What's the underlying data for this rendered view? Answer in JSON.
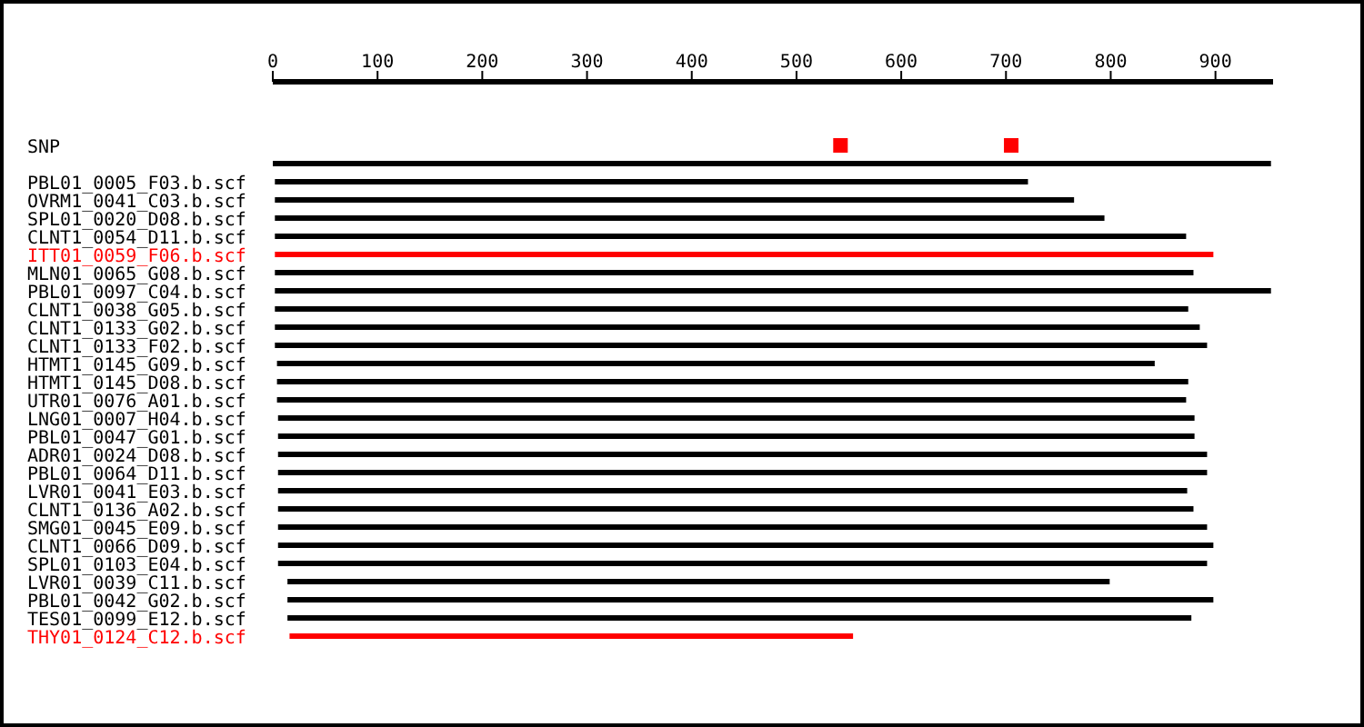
{
  "chart_data": {
    "type": "bar",
    "orientation": "horizontal",
    "categories": [
      "SNP",
      null,
      "PBL01_0005_F03.b.scf",
      "OVRM1_0041_C03.b.scf",
      "SPL01_0020_D08.b.scf",
      "CLNT1_0054_D11.b.scf",
      "ITT01_0059_F06.b.scf",
      "MLN01_0065_G08.b.scf",
      "PBL01_0097_C04.b.scf",
      "CLNT1_0038_G05.b.scf",
      "CLNT1_0133_G02.b.scf",
      "CLNT1_0133_F02.b.scf",
      "HTMT1_0145_G09.b.scf",
      "HTMT1_0145_D08.b.scf",
      "UTR01_0076_A01.b.scf",
      "LNG01_0007_H04.b.scf",
      "PBL01_0047_G01.b.scf",
      "ADR01_0024_D08.b.scf",
      "PBL01_0064_D11.b.scf",
      "LVR01_0041_E03.b.scf",
      "CLNT1_0136_A02.b.scf",
      "SMG01_0045_E09.b.scf",
      "CLNT1_0066_D09.b.scf",
      "SPL01_0103_E04.b.scf",
      "LVR01_0039_C11.b.scf",
      "PBL01_0042_G02.b.scf",
      "TES01_0099_E12.b.scf",
      "THY01_0124_C12.b.scf"
    ],
    "series": [
      {
        "type": "bar",
        "base": [
          null,
          0,
          2,
          2,
          2,
          2,
          2,
          2,
          2,
          2,
          2,
          2,
          4,
          4,
          4,
          5,
          5,
          5,
          5,
          5,
          5,
          5,
          5,
          5,
          14,
          14,
          14,
          16
        ],
        "values": [
          null,
          953,
          719,
          763,
          792,
          870,
          896,
          877,
          951,
          872,
          883,
          890,
          838,
          870,
          868,
          875,
          875,
          887,
          887,
          868,
          874,
          887,
          893,
          887,
          785,
          884,
          863,
          538
        ],
        "colors": [
          "#000000",
          "#000000",
          "#000000",
          "#000000",
          "#000000",
          "#000000",
          "#ff0000",
          "#000000",
          "#000000",
          "#000000",
          "#000000",
          "#000000",
          "#000000",
          "#000000",
          "#000000",
          "#000000",
          "#000000",
          "#000000",
          "#000000",
          "#000000",
          "#000000",
          "#000000",
          "#000000",
          "#000000",
          "#000000",
          "#000000",
          "#000000",
          "#ff0000"
        ]
      },
      {
        "type": "scatter",
        "x": [
          "SNP",
          "SNP"
        ],
        "values": [
          542,
          705
        ],
        "color": "#ff0000",
        "marker": "square"
      }
    ],
    "xlim": [
      0,
      955
    ],
    "xticks": [
      0,
      100,
      200,
      300,
      400,
      500,
      600,
      700,
      800,
      900
    ],
    "grid": false,
    "legend": false
  }
}
